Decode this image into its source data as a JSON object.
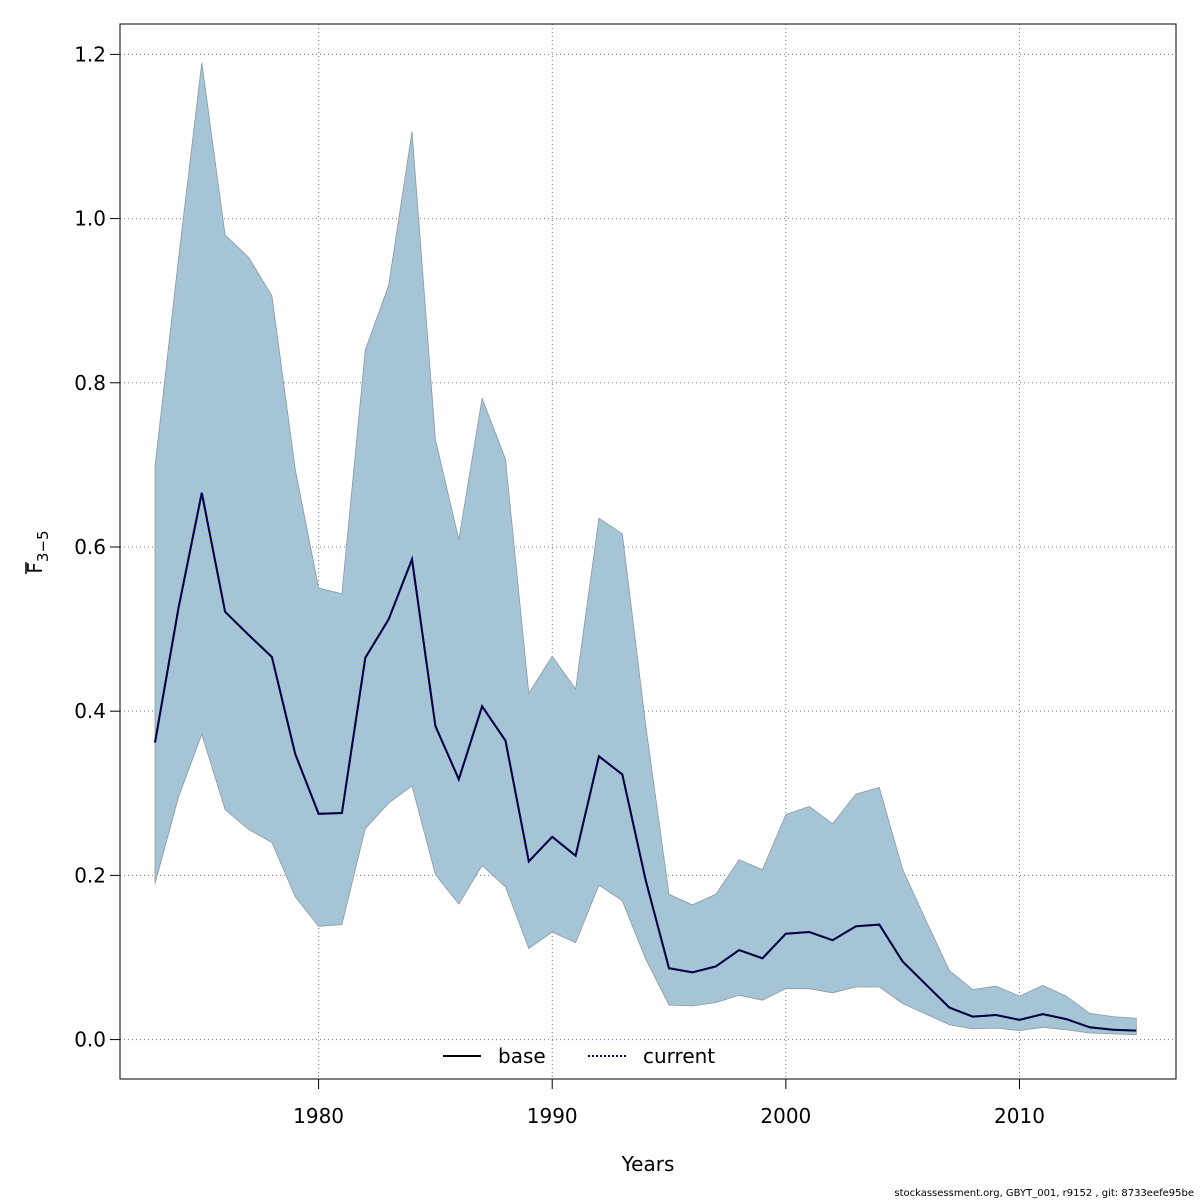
{
  "chart_data": {
    "type": "area",
    "title": "",
    "xlabel": "Years",
    "ylabel_main": "F",
    "ylabel_sub": "3−5",
    "xlim": [
      1971.5,
      2016.7
    ],
    "ylim": [
      -0.048,
      1.237
    ],
    "xticks": [
      1980,
      1990,
      2000,
      2010
    ],
    "yticks": [
      0.0,
      0.2,
      0.4,
      0.6,
      0.8,
      1.0,
      1.2
    ],
    "ytick_labels": [
      "0.0",
      "0.2",
      "0.4",
      "0.6",
      "0.8",
      "1.0",
      "1.2"
    ],
    "grid": true,
    "legend_position": "bottom-center",
    "x": [
      1973,
      1974,
      1975,
      1976,
      1977,
      1978,
      1979,
      1980,
      1981,
      1982,
      1983,
      1984,
      1985,
      1986,
      1987,
      1988,
      1989,
      1990,
      1991,
      1992,
      1993,
      1994,
      1995,
      1996,
      1997,
      1998,
      1999,
      2000,
      2001,
      2002,
      2003,
      2004,
      2005,
      2006,
      2007,
      2008,
      2009,
      2010,
      2011,
      2012,
      2013,
      2014,
      2015
    ],
    "series": [
      {
        "name": "base",
        "style": "solid",
        "color": "#000000",
        "values": [
          0.362,
          0.525,
          0.666,
          0.521,
          0.493,
          0.466,
          0.348,
          0.275,
          0.276,
          0.465,
          0.512,
          0.585,
          0.382,
          0.317,
          0.406,
          0.364,
          0.217,
          0.247,
          0.224,
          0.345,
          0.323,
          0.194,
          0.087,
          0.082,
          0.089,
          0.109,
          0.099,
          0.129,
          0.131,
          0.121,
          0.138,
          0.14,
          0.095,
          0.067,
          0.039,
          0.028,
          0.03,
          0.024,
          0.031,
          0.025,
          0.015,
          0.012,
          0.011
        ]
      },
      {
        "name": "current",
        "style": "dotted",
        "color": "#00008b",
        "values": [
          0.362,
          0.525,
          0.666,
          0.521,
          0.493,
          0.466,
          0.348,
          0.275,
          0.276,
          0.465,
          0.512,
          0.585,
          0.382,
          0.317,
          0.406,
          0.364,
          0.217,
          0.247,
          0.224,
          0.345,
          0.323,
          0.194,
          0.087,
          0.082,
          0.089,
          0.109,
          0.099,
          0.129,
          0.131,
          0.121,
          0.138,
          0.14,
          0.095,
          0.067,
          0.039,
          0.028,
          0.03,
          0.024,
          0.031,
          0.025,
          0.015,
          0.012,
          0.011
        ]
      }
    ],
    "ci_band": {
      "color": "#a5c4d5",
      "lower": [
        0.19,
        0.295,
        0.372,
        0.28,
        0.256,
        0.24,
        0.174,
        0.138,
        0.14,
        0.257,
        0.288,
        0.309,
        0.201,
        0.165,
        0.212,
        0.186,
        0.111,
        0.131,
        0.118,
        0.188,
        0.169,
        0.098,
        0.042,
        0.041,
        0.045,
        0.054,
        0.048,
        0.062,
        0.062,
        0.057,
        0.064,
        0.064,
        0.044,
        0.031,
        0.018,
        0.013,
        0.014,
        0.011,
        0.015,
        0.012,
        0.008,
        0.007,
        0.006
      ],
      "upper": [
        0.698,
        0.95,
        1.19,
        0.98,
        0.953,
        0.906,
        0.695,
        0.55,
        0.543,
        0.84,
        0.919,
        1.106,
        0.731,
        0.609,
        0.781,
        0.707,
        0.422,
        0.467,
        0.427,
        0.635,
        0.616,
        0.383,
        0.177,
        0.164,
        0.177,
        0.219,
        0.207,
        0.274,
        0.284,
        0.263,
        0.299,
        0.307,
        0.207,
        0.145,
        0.084,
        0.061,
        0.065,
        0.053,
        0.066,
        0.053,
        0.032,
        0.028,
        0.026
      ]
    }
  },
  "footer": "stockassessment.org, GBYT_001, r9152 , git: 8733eefe95be"
}
